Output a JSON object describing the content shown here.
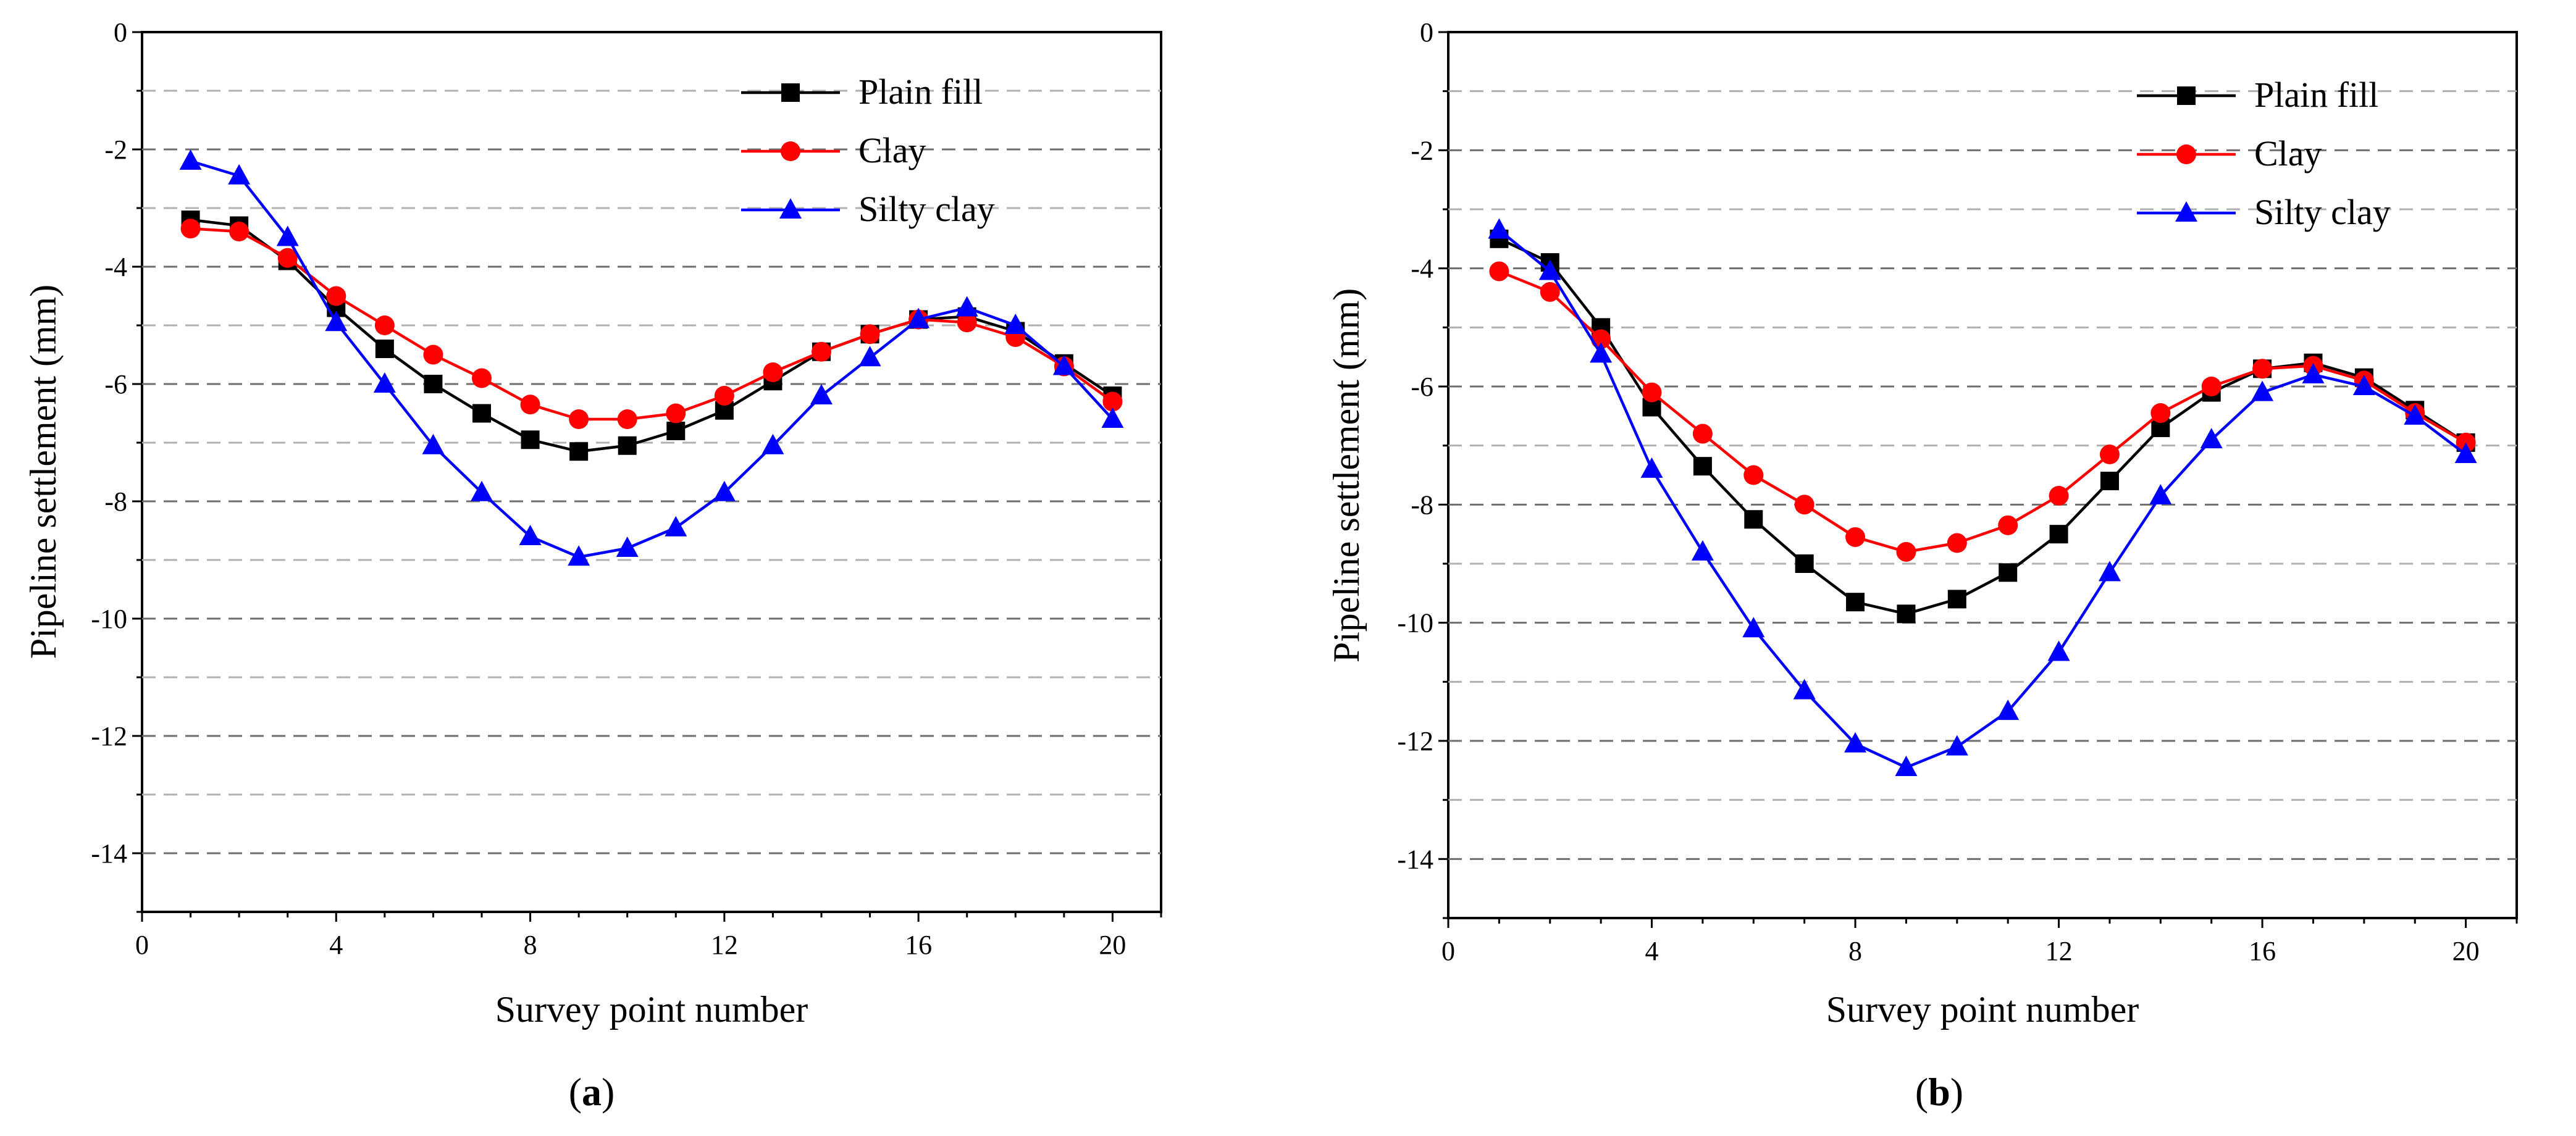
{
  "chart_data": [
    {
      "type": "line",
      "panel_label": "(a)",
      "panel_letter": "a",
      "xlabel": "Survey point number",
      "ylabel": "Pipeline settlement (mm)",
      "xlim": [
        0,
        21
      ],
      "ylim": [
        -15,
        0
      ],
      "xticks": [
        0,
        4,
        8,
        12,
        16,
        20
      ],
      "yticks": [
        0,
        -2,
        -4,
        -6,
        -8,
        -10,
        -12,
        -14
      ],
      "grid": "dashed horizontal every 1 mm",
      "legend_position": "top-right",
      "x": [
        1,
        2,
        3,
        4,
        5,
        6,
        7,
        8,
        9,
        10,
        11,
        12,
        13,
        14,
        15,
        16,
        17,
        18,
        19,
        20
      ],
      "series": [
        {
          "name": "Plain fill",
          "color": "#000000",
          "marker": "square",
          "values": [
            -3.2,
            -3.3,
            -3.9,
            -4.7,
            -5.4,
            -6.0,
            -6.5,
            -6.95,
            -7.15,
            -7.05,
            -6.8,
            -6.45,
            -5.95,
            -5.45,
            -5.15,
            -4.9,
            -4.85,
            -5.1,
            -5.65,
            -6.2
          ]
        },
        {
          "name": "Clay",
          "color": "#ff0000",
          "marker": "circle",
          "values": [
            -3.35,
            -3.4,
            -3.85,
            -4.5,
            -5.0,
            -5.5,
            -5.9,
            -6.35,
            -6.6,
            -6.6,
            -6.5,
            -6.2,
            -5.8,
            -5.45,
            -5.15,
            -4.9,
            -4.95,
            -5.2,
            -5.7,
            -6.3
          ]
        },
        {
          "name": "Silty clay",
          "color": "#0000ff",
          "marker": "triangle",
          "values": [
            -2.2,
            -2.45,
            -3.5,
            -4.95,
            -6.0,
            -7.05,
            -7.85,
            -8.6,
            -8.95,
            -8.8,
            -8.45,
            -7.85,
            -7.05,
            -6.2,
            -5.55,
            -4.9,
            -4.7,
            -5.0,
            -5.7,
            -6.6
          ]
        }
      ]
    },
    {
      "type": "line",
      "panel_label": "(b)",
      "panel_letter": "b",
      "xlabel": "Survey point number",
      "ylabel": "Pipeline settlement (mm)",
      "xlim": [
        0,
        21
      ],
      "ylim": [
        -15,
        0
      ],
      "xticks": [
        0,
        4,
        8,
        12,
        16,
        20
      ],
      "yticks": [
        0,
        -2,
        -4,
        -6,
        -8,
        -10,
        -12,
        -14
      ],
      "grid": "dashed horizontal every 1 mm",
      "legend_position": "top-right",
      "x": [
        1,
        2,
        3,
        4,
        5,
        6,
        7,
        8,
        9,
        10,
        11,
        12,
        13,
        14,
        15,
        16,
        17,
        18,
        19,
        20
      ],
      "series": [
        {
          "name": "Plain fill",
          "color": "#000000",
          "marker": "square",
          "values": [
            -3.5,
            -3.9,
            -5.0,
            -6.35,
            -7.35,
            -8.25,
            -9.0,
            -9.65,
            -9.85,
            -9.6,
            -9.15,
            -8.5,
            -7.6,
            -6.7,
            -6.1,
            -5.7,
            -5.6,
            -5.85,
            -6.4,
            -6.95
          ]
        },
        {
          "name": "Clay",
          "color": "#ff0000",
          "marker": "circle",
          "values": [
            -4.05,
            -4.4,
            -5.2,
            -6.1,
            -6.8,
            -7.5,
            -8.0,
            -8.55,
            -8.8,
            -8.65,
            -8.35,
            -7.85,
            -7.15,
            -6.45,
            -6.0,
            -5.7,
            -5.65,
            -5.9,
            -6.45,
            -6.95
          ]
        },
        {
          "name": "Silty clay",
          "color": "#0000ff",
          "marker": "triangle",
          "values": [
            -3.35,
            -4.05,
            -5.45,
            -7.4,
            -8.8,
            -10.1,
            -11.15,
            -12.05,
            -12.45,
            -12.1,
            -11.5,
            -10.5,
            -9.15,
            -7.85,
            -6.9,
            -6.1,
            -5.8,
            -6.0,
            -6.5,
            -7.15
          ]
        }
      ]
    }
  ]
}
